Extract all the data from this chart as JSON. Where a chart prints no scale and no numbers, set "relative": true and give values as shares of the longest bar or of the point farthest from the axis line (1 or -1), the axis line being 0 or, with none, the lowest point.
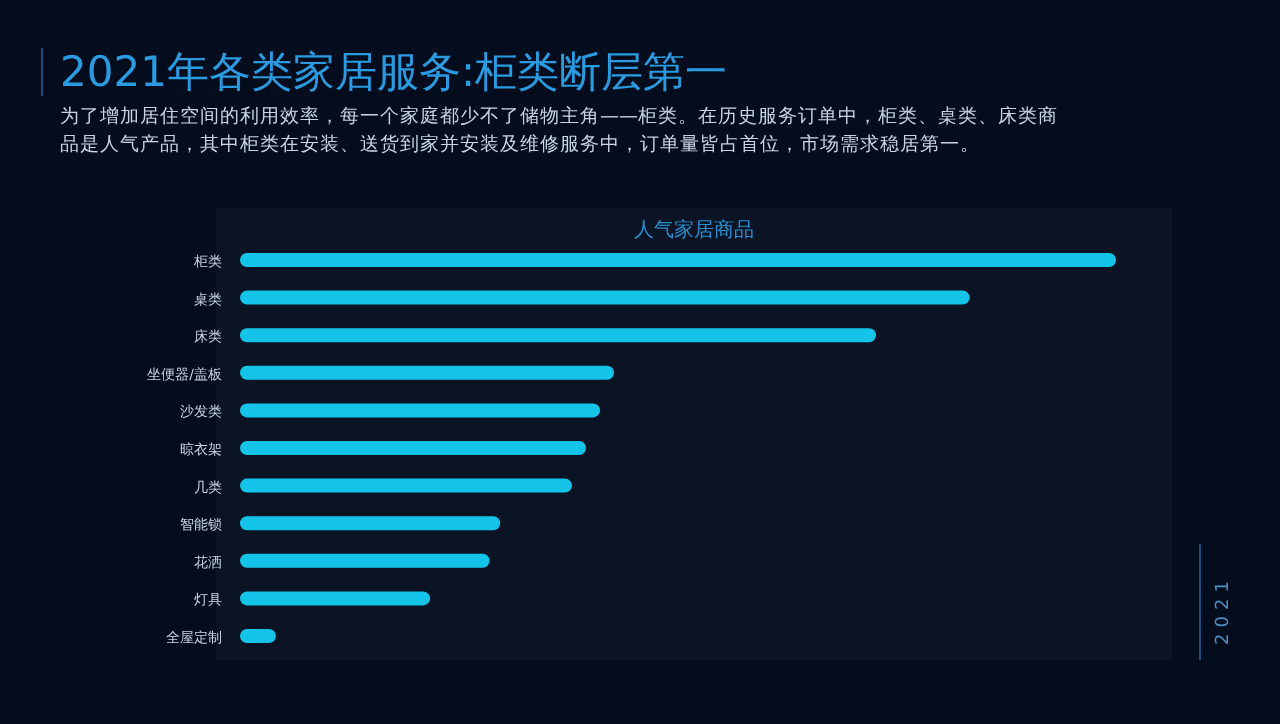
{
  "chart_data": {
    "type": "bar",
    "orientation": "horizontal",
    "relative": true,
    "title": "2021年各类家居服务:柜类断层第一",
    "subtitle": "为了增加居住空间的利用效率，每一个家庭都少不了储物主角——柜类。在历史服务订单中，柜类、桌类、床类商品是人气产品，其中柜类在安装、送货到家并安装及维修服务中，订单量皆占首位，市场需求稳居第一。",
    "xlabel": "人气家居商品",
    "annotations": [
      "2021"
    ],
    "categories": [
      "柜类",
      "桌类",
      "床类",
      "坐便器/盖板",
      "沙发类",
      "晾衣架",
      "几类",
      "智能锁",
      "花洒",
      "灯具",
      "全屋定制"
    ],
    "values": [
      1,
      0.833,
      0.726,
      0.427,
      0.411,
      0.395,
      0.379,
      0.297,
      0.285,
      0.217,
      0.041
    ],
    "color": "#14c4e8"
  }
}
